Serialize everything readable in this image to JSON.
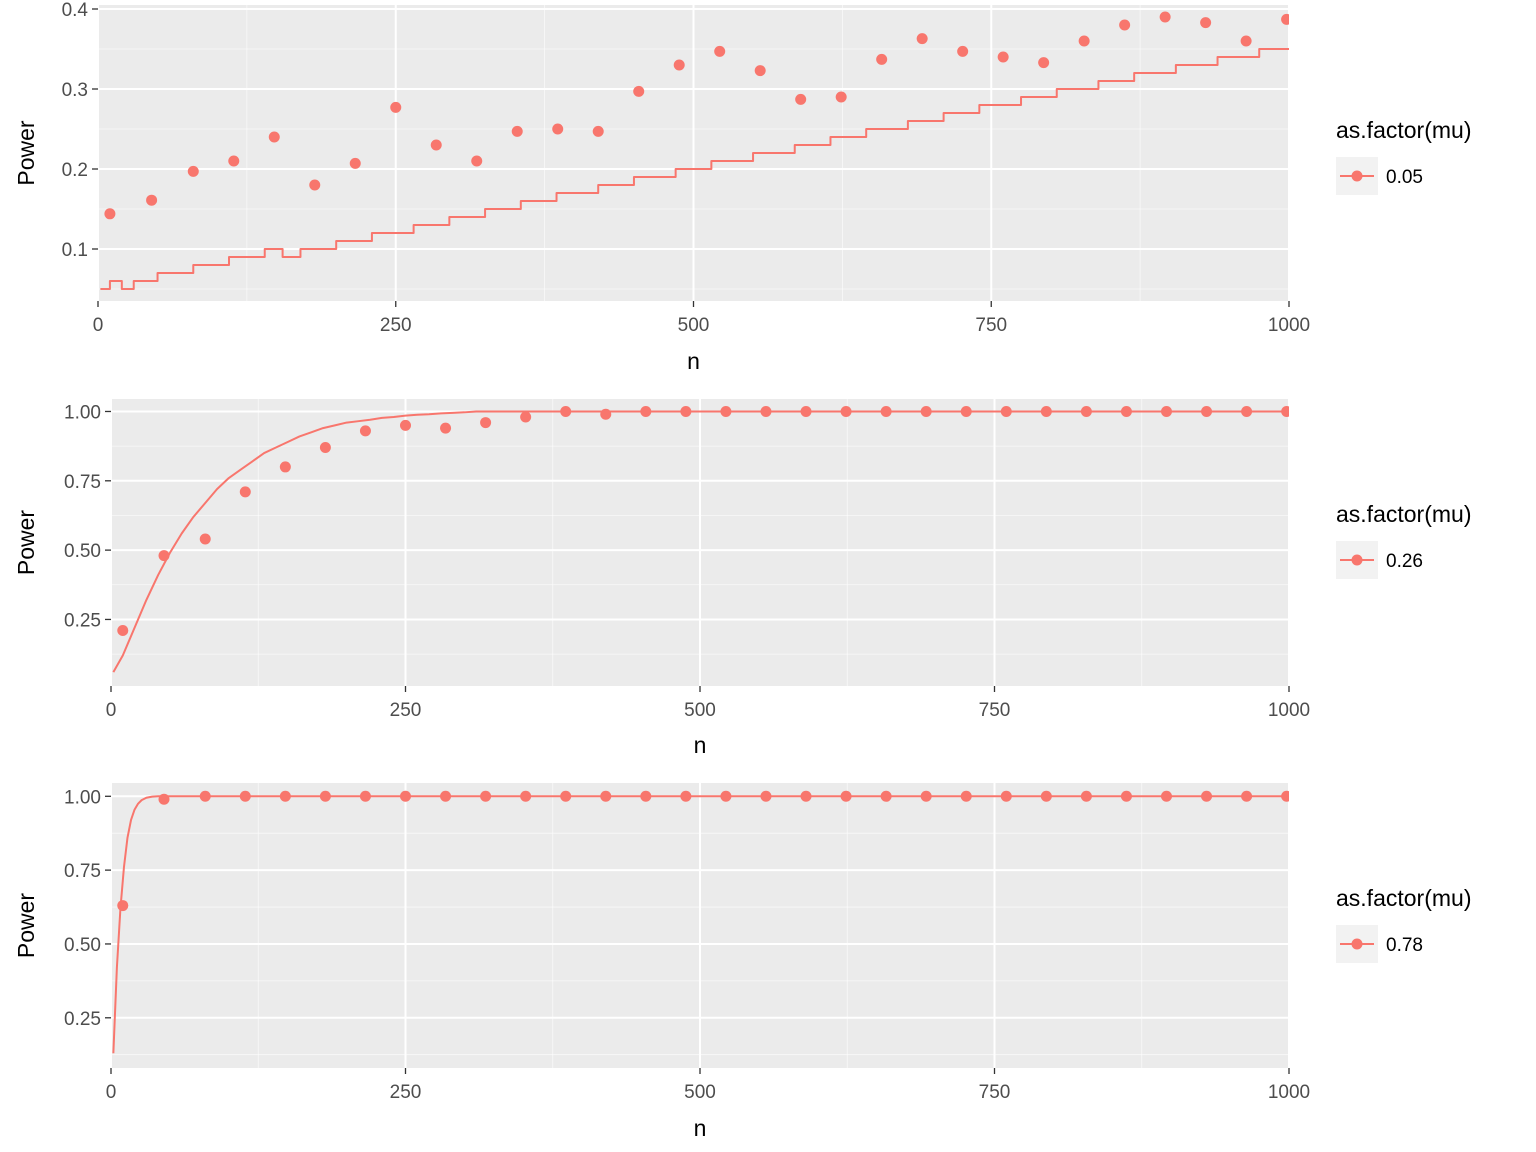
{
  "colors": {
    "series": "#F8766D",
    "panel_bg": "#EBEBEB",
    "grid_major": "#FFFFFF",
    "legend_key_bg": "#F2F2F2",
    "tick_text": "#4D4D4D"
  },
  "chart_data": [
    {
      "type": "line+scatter",
      "xlabel": "n",
      "ylabel": "Power",
      "xlim": [
        0,
        1000
      ],
      "ylim": [
        0.035,
        0.405
      ],
      "xticks": [
        0,
        250,
        500,
        750,
        1000
      ],
      "xtick_labels": [
        "0",
        "250",
        "500",
        "750",
        "1000"
      ],
      "yticks": [
        0.1,
        0.2,
        0.3,
        0.4
      ],
      "ytick_labels": [
        "0.1",
        "0.2",
        "0.3",
        "0.4"
      ],
      "grid": true,
      "legend": {
        "title": "as.factor(mu)",
        "entries": [
          "0.05"
        ],
        "position": "right"
      },
      "series": [
        {
          "name": "0.05",
          "line": {
            "kind": "step",
            "x": [
              2,
              10,
              20,
              30,
              50,
              80,
              110,
              140,
              155,
              170,
              200,
              230,
              265,
              295,
              325,
              355,
              385,
              420,
              450,
              485,
              515,
              550,
              585,
              615,
              645,
              680,
              710,
              740,
              775,
              805,
              840,
              870,
              905,
              940,
              975,
              1000
            ],
            "y": [
              0.05,
              0.06,
              0.05,
              0.06,
              0.07,
              0.08,
              0.09,
              0.1,
              0.09,
              0.1,
              0.11,
              0.12,
              0.13,
              0.14,
              0.15,
              0.16,
              0.17,
              0.18,
              0.19,
              0.2,
              0.21,
              0.22,
              0.23,
              0.24,
              0.25,
              0.26,
              0.27,
              0.28,
              0.29,
              0.3,
              0.31,
              0.32,
              0.33,
              0.34,
              0.35,
              0.35
            ]
          },
          "points": {
            "x": [
              10,
              45,
              80,
              114,
              148,
              182,
              216,
              250,
              284,
              318,
              352,
              386,
              420,
              454,
              488,
              522,
              556,
              590,
              624,
              658,
              692,
              726,
              760,
              794,
              828,
              862,
              896,
              930,
              964,
              998
            ],
            "y": [
              0.144,
              0.161,
              0.197,
              0.21,
              0.24,
              0.18,
              0.207,
              0.277,
              0.23,
              0.21,
              0.247,
              0.25,
              0.247,
              0.297,
              0.33,
              0.347,
              0.323,
              0.287,
              0.29,
              0.337,
              0.363,
              0.347,
              0.34,
              0.333,
              0.36,
              0.38,
              0.39,
              0.383,
              0.36,
              0.387
            ]
          }
        }
      ]
    },
    {
      "type": "line+scatter",
      "xlabel": "n",
      "ylabel": "Power",
      "xlim": [
        0,
        1000
      ],
      "ylim": [
        0.01,
        1.045
      ],
      "xticks": [
        0,
        250,
        500,
        750,
        1000
      ],
      "xtick_labels": [
        "0",
        "250",
        "500",
        "750",
        "1000"
      ],
      "yticks": [
        0.25,
        0.5,
        0.75,
        1.0
      ],
      "ytick_labels": [
        "0.25",
        "0.50",
        "0.75",
        "1.00"
      ],
      "grid": true,
      "legend": {
        "title": "as.factor(mu)",
        "entries": [
          "0.26"
        ],
        "position": "right"
      },
      "series": [
        {
          "name": "0.26",
          "line": {
            "kind": "smooth",
            "x": [
              2,
              10,
              20,
              30,
              40,
              50,
              60,
              70,
              80,
              90,
              100,
              110,
              120,
              130,
              140,
              150,
              160,
              170,
              180,
              190,
              200,
              210,
              220,
              230,
              240,
              250,
              260,
              270,
              280,
              290,
              300,
              310,
              350,
              400,
              500,
              600,
              700,
              800,
              900,
              1000
            ],
            "y": [
              0.06,
              0.12,
              0.22,
              0.32,
              0.41,
              0.49,
              0.56,
              0.62,
              0.67,
              0.72,
              0.76,
              0.79,
              0.82,
              0.85,
              0.87,
              0.89,
              0.91,
              0.925,
              0.94,
              0.95,
              0.96,
              0.965,
              0.97,
              0.977,
              0.98,
              0.985,
              0.988,
              0.99,
              0.993,
              0.995,
              0.997,
              1.0,
              1.0,
              1.0,
              1.0,
              1.0,
              1.0,
              1.0,
              1.0,
              1.0
            ]
          },
          "points": {
            "x": [
              10,
              45,
              80,
              114,
              148,
              182,
              216,
              250,
              284,
              318,
              352,
              386,
              420,
              454,
              488,
              522,
              556,
              590,
              624,
              658,
              692,
              726,
              760,
              794,
              828,
              862,
              896,
              930,
              964,
              998
            ],
            "y": [
              0.21,
              0.48,
              0.54,
              0.71,
              0.8,
              0.87,
              0.93,
              0.95,
              0.94,
              0.96,
              0.98,
              1.0,
              0.99,
              1.0,
              1.0,
              1.0,
              1.0,
              1.0,
              1.0,
              1.0,
              1.0,
              1.0,
              1.0,
              1.0,
              1.0,
              1.0,
              1.0,
              1.0,
              1.0,
              1.0
            ]
          }
        }
      ]
    },
    {
      "type": "line+scatter",
      "xlabel": "n",
      "ylabel": "Power",
      "xlim": [
        0,
        1000
      ],
      "ylim": [
        0.08,
        1.045
      ],
      "xticks": [
        0,
        250,
        500,
        750,
        1000
      ],
      "xtick_labels": [
        "0",
        "250",
        "500",
        "750",
        "1000"
      ],
      "yticks": [
        0.25,
        0.5,
        0.75,
        1.0
      ],
      "ytick_labels": [
        "0.25",
        "0.50",
        "0.75",
        "1.00"
      ],
      "grid": true,
      "legend": {
        "title": "as.factor(mu)",
        "entries": [
          "0.78"
        ],
        "position": "right"
      },
      "series": [
        {
          "name": "0.78",
          "line": {
            "kind": "smooth",
            "x": [
              2,
              5,
              8,
              11,
              14,
              17,
              20,
              23,
              26,
              30,
              35,
              40,
              50,
              100,
              1000
            ],
            "y": [
              0.13,
              0.42,
              0.62,
              0.76,
              0.86,
              0.92,
              0.955,
              0.975,
              0.987,
              0.995,
              0.999,
              1.0,
              1.0,
              1.0,
              1.0
            ]
          },
          "points": {
            "x": [
              10,
              45,
              80,
              114,
              148,
              182,
              216,
              250,
              284,
              318,
              352,
              386,
              420,
              454,
              488,
              522,
              556,
              590,
              624,
              658,
              692,
              726,
              760,
              794,
              828,
              862,
              896,
              930,
              964,
              998
            ],
            "y": [
              0.63,
              0.99,
              1.0,
              1.0,
              1.0,
              1.0,
              1.0,
              1.0,
              1.0,
              1.0,
              1.0,
              1.0,
              1.0,
              1.0,
              1.0,
              1.0,
              1.0,
              1.0,
              1.0,
              1.0,
              1.0,
              1.0,
              1.0,
              1.0,
              1.0,
              1.0,
              1.0,
              1.0,
              1.0,
              1.0
            ]
          }
        }
      ]
    }
  ]
}
